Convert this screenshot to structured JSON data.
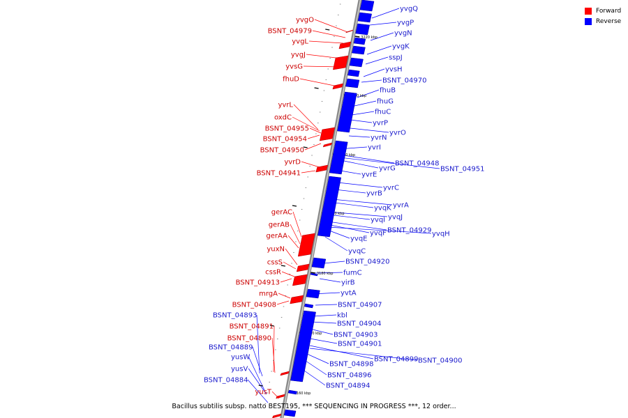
{
  "legend": {
    "forward_label": "Forward",
    "reverse_label": "Reverse",
    "forward_color": "#ff0000",
    "reverse_color": "#0000ff"
  },
  "caption": "Bacillus subtilis subsp. natto BEST195, *** SEQUENCING IN PROGRESS ***, 12 order...",
  "map": {
    "ticks": [
      "3220 kbp",
      "3210 kbp",
      "3200 kbp",
      "3190 kbp",
      "3180 kbp",
      "3170 kbp",
      "3160 kbp"
    ],
    "forward_genes": [
      "yvgO",
      "BSNT_04979",
      "yvgL",
      "yvgJ",
      "yvsG",
      "fhuD",
      "yvrL",
      "oxdC",
      "BSNT_04955",
      "BSNT_04954",
      "BSNT_04950",
      "yvrD",
      "BSNT_04941",
      "gerAC",
      "gerAB",
      "gerAA",
      "yuxN",
      "cssS",
      "cssR",
      "BSNT_04913",
      "mrgA",
      "BSNT_04908",
      "BSNT_04891",
      "BSNT_04890",
      "yusT"
    ],
    "reverse_genes": [
      "yvgQ",
      "yvgP",
      "yvgN",
      "yvgK",
      "sspJ",
      "yvsH",
      "BSNT_04970",
      "fhuB",
      "fhuG",
      "fhuC",
      "yvrP",
      "yvrO",
      "yvrN",
      "yvrI",
      "BSNT_04948",
      "BSNT_04951",
      "yvrG",
      "yvrE",
      "yvrC",
      "yvrB",
      "yvrA",
      "yvqK",
      "yvqJ",
      "yvqI",
      "BSNT_04929",
      "yvqH",
      "yvqF",
      "yvqE",
      "yvqC",
      "BSNT_04920",
      "fumC",
      "yirB",
      "yvtA",
      "BSNT_04907",
      "kbl",
      "BSNT_04904",
      "BSNT_04903",
      "BSNT_04901",
      "BSNT_04899",
      "BSNT_04900",
      "BSNT_04898",
      "BSNT_04896",
      "BSNT_04894",
      "BSNT_04893",
      "BSNT_04889",
      "yusW",
      "yusV",
      "BSNT_04884"
    ]
  }
}
